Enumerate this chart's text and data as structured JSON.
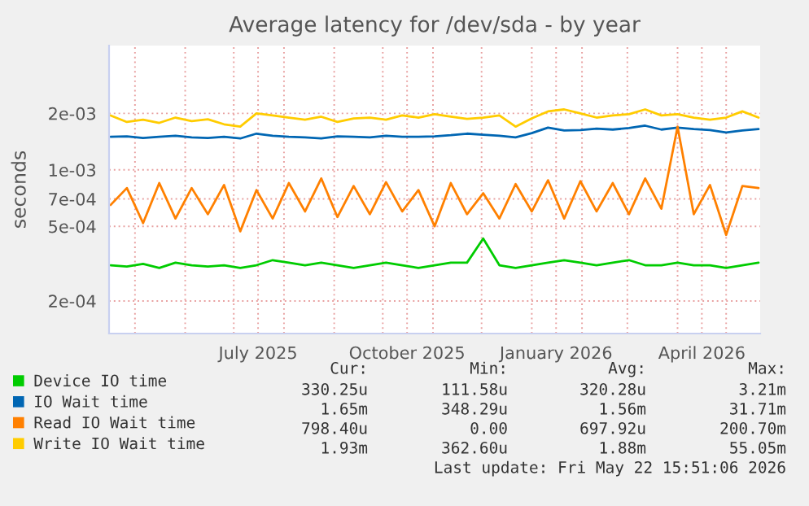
{
  "chart_data": {
    "type": "line",
    "title": "Average latency for /dev/sda - by year",
    "ylabel": "seconds",
    "log": "y",
    "grid": true,
    "legend": "bottom",
    "marker": "none",
    "line_style": "solid",
    "x": [
      "2025-04-16",
      "2025-04-26",
      "2025-05-06",
      "2025-05-16",
      "2025-05-26",
      "2025-06-05",
      "2025-06-15",
      "2025-06-25",
      "2025-07-05",
      "2025-07-15",
      "2025-07-25",
      "2025-08-04",
      "2025-08-14",
      "2025-08-24",
      "2025-09-03",
      "2025-09-13",
      "2025-09-23",
      "2025-10-03",
      "2025-10-13",
      "2025-10-23",
      "2025-11-02",
      "2025-11-12",
      "2025-11-22",
      "2025-12-02",
      "2025-12-12",
      "2025-12-22",
      "2026-01-01",
      "2026-01-11",
      "2026-01-21",
      "2026-01-31",
      "2026-02-10",
      "2026-02-20",
      "2026-03-02",
      "2026-03-12",
      "2026-03-22",
      "2026-04-01",
      "2026-04-11",
      "2026-04-21",
      "2026-05-01",
      "2026-05-11",
      "2026-05-21"
    ],
    "xlim": [
      "2025-04-15",
      "2026-05-22"
    ],
    "xticks": [
      {
        "value": "2025-05-01",
        "label": null
      },
      {
        "value": "2025-06-01",
        "label": null
      },
      {
        "value": "2025-07-01",
        "label": null
      },
      {
        "value": "2025-07-16",
        "label": "July 2025"
      },
      {
        "value": "2025-08-01",
        "label": null
      },
      {
        "value": "2025-09-01",
        "label": null
      },
      {
        "value": "2025-10-01",
        "label": null
      },
      {
        "value": "2025-10-16",
        "label": "October 2025"
      },
      {
        "value": "2025-11-01",
        "label": null
      },
      {
        "value": "2025-12-01",
        "label": null
      },
      {
        "value": "2026-01-01",
        "label": null
      },
      {
        "value": "2026-01-16",
        "label": "January 2026"
      },
      {
        "value": "2026-02-01",
        "label": null
      },
      {
        "value": "2026-03-01",
        "label": null
      },
      {
        "value": "2026-04-01",
        "label": null
      },
      {
        "value": "2026-04-16",
        "label": "April 2026"
      },
      {
        "value": "2026-05-01",
        "label": null
      }
    ],
    "ylim": [
      0.000134,
      0.0046
    ],
    "yticks": [
      {
        "value": 0.0002,
        "label": "2e-04"
      },
      {
        "value": 0.0005,
        "label": "5e-04"
      },
      {
        "value": 0.0007,
        "label": "7e-04"
      },
      {
        "value": 0.001,
        "label": "1e-03"
      },
      {
        "value": 0.002,
        "label": "2e-03"
      }
    ],
    "series": [
      {
        "name": "Device IO time",
        "color": "#00cc00",
        "values": [
          0.00031,
          0.000305,
          0.000315,
          0.0003,
          0.00032,
          0.00031,
          0.000305,
          0.00031,
          0.0003,
          0.00031,
          0.00033,
          0.00032,
          0.00031,
          0.00032,
          0.00031,
          0.0003,
          0.00031,
          0.00032,
          0.00031,
          0.0003,
          0.00031,
          0.00032,
          0.00032,
          0.00043,
          0.00031,
          0.0003,
          0.00031,
          0.00032,
          0.00033,
          0.00032,
          0.00031,
          0.00032,
          0.00033,
          0.00031,
          0.00031,
          0.00032,
          0.00031,
          0.00031,
          0.0003,
          0.00031,
          0.00032
        ]
      },
      {
        "name": "IO Wait time",
        "color": "#0066b3",
        "values": [
          0.0015,
          0.00151,
          0.00148,
          0.0015,
          0.00152,
          0.00149,
          0.00148,
          0.0015,
          0.00147,
          0.00156,
          0.00152,
          0.0015,
          0.00149,
          0.00147,
          0.00151,
          0.0015,
          0.00149,
          0.00152,
          0.0015,
          0.0015,
          0.00151,
          0.00153,
          0.00156,
          0.00154,
          0.00152,
          0.00149,
          0.00157,
          0.00168,
          0.00162,
          0.00163,
          0.00166,
          0.00164,
          0.00167,
          0.00172,
          0.00164,
          0.00168,
          0.00165,
          0.00163,
          0.00158,
          0.00162,
          0.00165
        ]
      },
      {
        "name": "Read IO Wait time",
        "color": "#ff8000",
        "values": [
          0.00065,
          0.0008,
          0.00052,
          0.00085,
          0.00055,
          0.0008,
          0.00058,
          0.00083,
          0.00047,
          0.00078,
          0.00055,
          0.00085,
          0.0006,
          0.0009,
          0.00056,
          0.00082,
          0.00058,
          0.00086,
          0.0006,
          0.00078,
          0.0005,
          0.00085,
          0.00058,
          0.00075,
          0.00055,
          0.00084,
          0.0006,
          0.00088,
          0.00055,
          0.00087,
          0.0006,
          0.00085,
          0.00058,
          0.0009,
          0.00062,
          0.0017,
          0.00058,
          0.00083,
          0.00045,
          0.00082,
          0.0008
        ]
      },
      {
        "name": "Write IO Wait time",
        "color": "#ffcc00",
        "values": [
          0.00195,
          0.0018,
          0.00185,
          0.00178,
          0.0019,
          0.00182,
          0.00186,
          0.00175,
          0.0017,
          0.002,
          0.00195,
          0.0019,
          0.00185,
          0.00192,
          0.0018,
          0.00188,
          0.0019,
          0.00185,
          0.00195,
          0.0019,
          0.00198,
          0.00192,
          0.00187,
          0.0019,
          0.00195,
          0.0017,
          0.00188,
          0.00205,
          0.0021,
          0.002,
          0.0019,
          0.00195,
          0.00198,
          0.0021,
          0.00195,
          0.00198,
          0.0019,
          0.00185,
          0.0019,
          0.00205,
          0.0019
        ]
      }
    ],
    "annotations": [
      "Cur:",
      "Min:",
      "Avg:",
      "Max:",
      "330.25u",
      "111.58u",
      "320.28u",
      "3.21m",
      "1.65m",
      "348.29u",
      "1.56m",
      "31.71m",
      "798.40u",
      "0.00",
      "697.92u",
      "200.70m",
      "1.93m",
      "362.60u",
      "1.88m",
      "55.05m",
      "Last update: Fri May 22 15:51:06 2026"
    ]
  }
}
